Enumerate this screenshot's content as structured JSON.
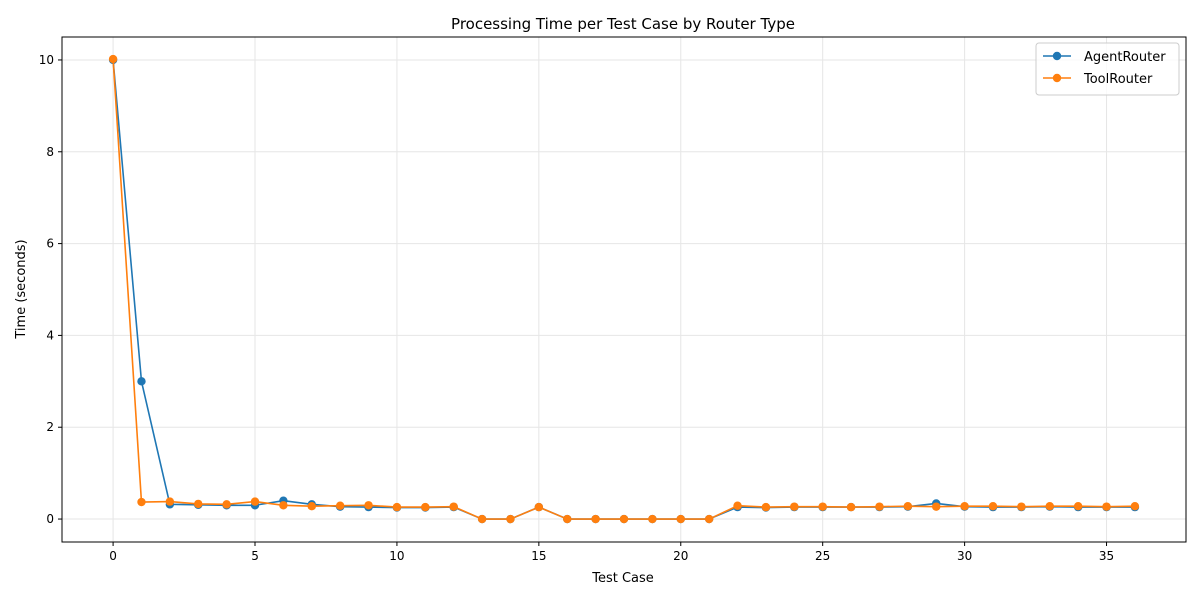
{
  "chart_data": {
    "type": "line",
    "title": "Processing Time per Test Case by Router Type",
    "xlabel": "Test Case",
    "ylabel": "Time (seconds)",
    "xlim": [
      -1.8,
      37.8
    ],
    "ylim": [
      -0.5,
      10.5
    ],
    "xticks": [
      0,
      5,
      10,
      15,
      20,
      25,
      30,
      35
    ],
    "yticks": [
      0,
      2,
      4,
      6,
      8,
      10
    ],
    "grid": true,
    "legend_position": "top-right",
    "x": [
      0,
      1,
      2,
      3,
      4,
      5,
      6,
      7,
      8,
      9,
      10,
      11,
      12,
      13,
      14,
      15,
      16,
      17,
      18,
      19,
      20,
      21,
      22,
      23,
      24,
      25,
      26,
      27,
      28,
      29,
      30,
      31,
      32,
      33,
      34,
      35,
      36
    ],
    "series": [
      {
        "name": "AgentRouter",
        "color": "#1f77b4",
        "values": [
          10.0,
          3.0,
          0.32,
          0.31,
          0.3,
          0.3,
          0.4,
          0.32,
          0.27,
          0.26,
          0.25,
          0.25,
          0.26,
          0.0,
          0.0,
          0.26,
          0.0,
          0.0,
          0.0,
          0.0,
          0.0,
          0.0,
          0.26,
          0.25,
          0.26,
          0.26,
          0.26,
          0.26,
          0.27,
          0.34,
          0.27,
          0.26,
          0.26,
          0.27,
          0.26,
          0.26,
          0.26
        ]
      },
      {
        "name": "ToolRouter",
        "color": "#ff7f0e",
        "values": [
          10.02,
          0.37,
          0.38,
          0.33,
          0.32,
          0.38,
          0.3,
          0.28,
          0.29,
          0.3,
          0.26,
          0.26,
          0.27,
          0.0,
          0.0,
          0.26,
          0.0,
          0.0,
          0.0,
          0.0,
          0.0,
          0.0,
          0.29,
          0.26,
          0.27,
          0.27,
          0.26,
          0.27,
          0.28,
          0.27,
          0.28,
          0.28,
          0.27,
          0.28,
          0.28,
          0.27,
          0.28
        ]
      }
    ]
  }
}
